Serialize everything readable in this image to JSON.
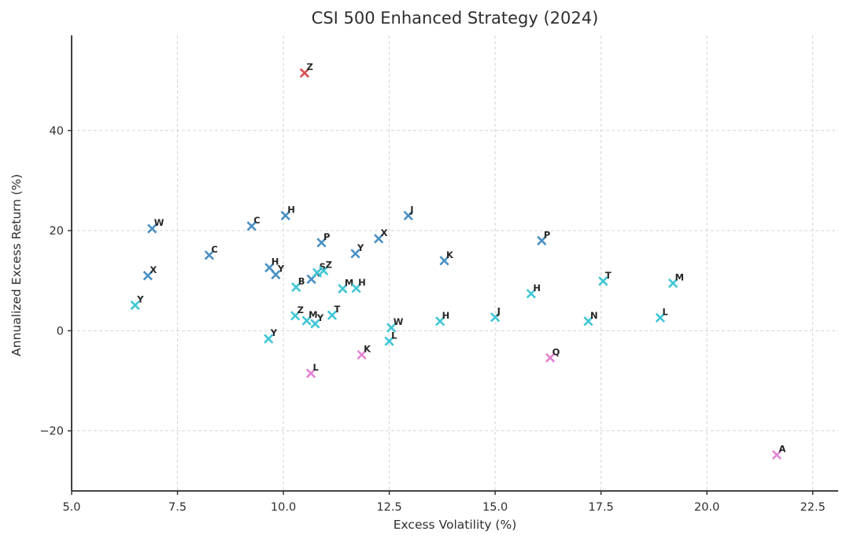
{
  "title": "CSI 500 Enhanced Strategy (2024)",
  "chart_data": {
    "type": "scatter",
    "title": "CSI 500 Enhanced Strategy (2024)",
    "xlabel": "Excess Volatility (%)",
    "ylabel": "Annualized Excess Return (%)",
    "xlim": [
      5.0,
      23.1
    ],
    "ylim": [
      -32.0,
      59.0
    ],
    "x_ticks": [
      5.0,
      7.5,
      10.0,
      12.5,
      15.0,
      17.5,
      20.0,
      22.5
    ],
    "x_tick_labels": [
      "5.0",
      "7.5",
      "10.0",
      "12.5",
      "15.0",
      "17.5",
      "20.0",
      "22.5"
    ],
    "y_ticks": [
      -20,
      0,
      20,
      40
    ],
    "y_tick_labels": [
      "−20",
      "0",
      "20",
      "40"
    ],
    "grid": true,
    "grid_style": "dashed",
    "legend": "none",
    "marker": "x",
    "colors": {
      "blue": "#4a90c4",
      "cyan": "#3fc6d6",
      "pink": "#e383d4",
      "red": "#d6514d",
      "grid": "#d5d5d5",
      "spine": "#2a2a2a",
      "text": "#2e2e2e",
      "point_label": "#262626"
    },
    "points": [
      {
        "label": "W",
        "x": 6.9,
        "y": 20.4,
        "color": "blue"
      },
      {
        "label": "X",
        "x": 6.8,
        "y": 11.0,
        "color": "blue"
      },
      {
        "label": "Y",
        "x": 6.5,
        "y": 5.1,
        "color": "cyan"
      },
      {
        "label": "C",
        "x": 8.25,
        "y": 15.1,
        "color": "blue"
      },
      {
        "label": "C",
        "x": 9.25,
        "y": 20.9,
        "color": "blue"
      },
      {
        "label": "H",
        "x": 10.05,
        "y": 23.0,
        "color": "blue"
      },
      {
        "label": "J",
        "x": 12.95,
        "y": 23.0,
        "color": "blue"
      },
      {
        "label": "Z",
        "x": 10.5,
        "y": 51.5,
        "color": "red"
      },
      {
        "label": "H",
        "x": 9.67,
        "y": 12.6,
        "color": "blue"
      },
      {
        "label": "Y",
        "x": 9.82,
        "y": 11.2,
        "color": "blue"
      },
      {
        "label": "X",
        "x": 10.66,
        "y": 10.3,
        "color": "blue"
      },
      {
        "label": "S",
        "x": 10.8,
        "y": 11.6,
        "color": "cyan"
      },
      {
        "label": "Z",
        "x": 10.95,
        "y": 12.0,
        "color": "cyan"
      },
      {
        "label": "P",
        "x": 10.9,
        "y": 17.6,
        "color": "blue"
      },
      {
        "label": "Y",
        "x": 11.7,
        "y": 15.4,
        "color": "blue"
      },
      {
        "label": "X",
        "x": 12.25,
        "y": 18.4,
        "color": "blue"
      },
      {
        "label": "B",
        "x": 10.3,
        "y": 8.7,
        "color": "cyan"
      },
      {
        "label": "M",
        "x": 11.4,
        "y": 8.4,
        "color": "cyan"
      },
      {
        "label": "H",
        "x": 11.72,
        "y": 8.5,
        "color": "cyan"
      },
      {
        "label": "Z",
        "x": 10.28,
        "y": 3.0,
        "color": "cyan"
      },
      {
        "label": "M",
        "x": 10.55,
        "y": 2.0,
        "color": "cyan"
      },
      {
        "label": "Y",
        "x": 10.75,
        "y": 1.4,
        "color": "cyan"
      },
      {
        "label": "T",
        "x": 11.15,
        "y": 3.1,
        "color": "cyan"
      },
      {
        "label": "Y",
        "x": 9.65,
        "y": -1.6,
        "color": "cyan"
      },
      {
        "label": "W",
        "x": 12.55,
        "y": 0.6,
        "color": "cyan"
      },
      {
        "label": "L",
        "x": 12.5,
        "y": -2.1,
        "color": "cyan"
      },
      {
        "label": "K",
        "x": 11.85,
        "y": -4.8,
        "color": "pink"
      },
      {
        "label": "L",
        "x": 10.65,
        "y": -8.5,
        "color": "pink"
      },
      {
        "label": "K",
        "x": 13.8,
        "y": 14.0,
        "color": "blue"
      },
      {
        "label": "P",
        "x": 16.1,
        "y": 18.0,
        "color": "blue"
      },
      {
        "label": "H",
        "x": 13.7,
        "y": 1.9,
        "color": "cyan"
      },
      {
        "label": "J",
        "x": 15.0,
        "y": 2.7,
        "color": "cyan"
      },
      {
        "label": "H",
        "x": 15.85,
        "y": 7.4,
        "color": "cyan"
      },
      {
        "label": "T",
        "x": 17.55,
        "y": 9.9,
        "color": "cyan"
      },
      {
        "label": "N",
        "x": 17.2,
        "y": 1.9,
        "color": "cyan"
      },
      {
        "label": "Q",
        "x": 16.3,
        "y": -5.4,
        "color": "pink"
      },
      {
        "label": "M",
        "x": 19.2,
        "y": 9.5,
        "color": "cyan"
      },
      {
        "label": "L",
        "x": 18.9,
        "y": 2.6,
        "color": "cyan"
      },
      {
        "label": "A",
        "x": 21.65,
        "y": -24.8,
        "color": "pink"
      }
    ]
  }
}
